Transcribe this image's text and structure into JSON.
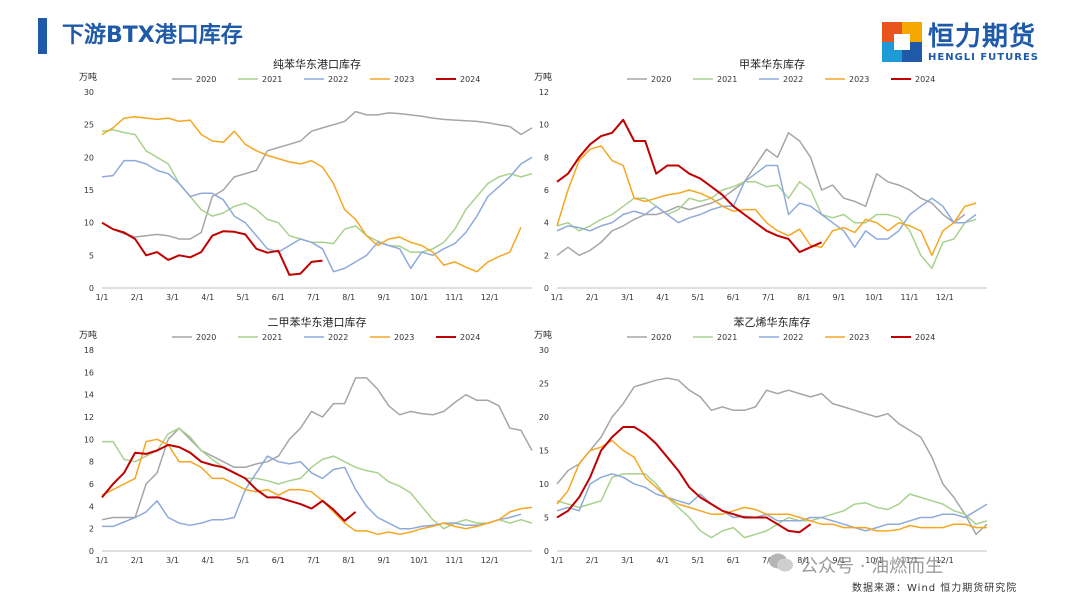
{
  "header": {
    "title": "下游BTX港口库存"
  },
  "logo": {
    "name": "恒力期货",
    "sub": "HENGLI FUTURES",
    "colors": [
      "#e8541e",
      "#f6a800",
      "#1e9ad6",
      "#1e5aa8"
    ]
  },
  "footer": {
    "watermark": "公众号 · 油燃而生",
    "source": "数据来源：Wind 恒力期货研究院"
  },
  "series_colors": {
    "2020": "#a6a6a6",
    "2021": "#a9d18e",
    "2022": "#8eaadb",
    "2023": "#f5a623",
    "2024": "#c00000"
  },
  "chart_data": [
    {
      "type": "line",
      "title": "纯苯华东港口库存",
      "unit": "万吨",
      "ylim": [
        0,
        30
      ],
      "yticks": [
        0,
        5,
        10,
        15,
        20,
        25,
        30
      ],
      "xticks": [
        "1/1",
        "2/1",
        "3/1",
        "4/1",
        "5/1",
        "6/1",
        "7/1",
        "8/1",
        "9/1",
        "10/1",
        "11/1",
        "12/1"
      ],
      "legend_position": "top",
      "series": [
        {
          "name": "2020",
          "values": [
            10,
            9,
            8.3,
            7.8,
            8,
            8.2,
            8,
            7.5,
            7.5,
            8.5,
            14,
            15,
            17,
            17.5,
            18,
            21,
            21.5,
            22,
            22.5,
            24,
            24.5,
            25,
            25.5,
            27,
            26.5,
            26.5,
            26.8,
            26.7,
            26.5,
            26.3,
            26,
            25.8,
            25.7,
            25.6,
            25.5,
            25.3,
            25,
            24.7,
            23.5,
            24.5
          ]
        },
        {
          "name": "2021",
          "values": [
            24,
            24.2,
            23.8,
            23.5,
            21,
            20,
            19,
            16,
            14,
            12,
            11,
            11.5,
            12.5,
            13,
            12,
            10.5,
            10,
            8,
            7.5,
            7,
            7,
            6.8,
            9,
            9.5,
            8,
            7.2,
            6.5,
            6.4,
            5.5,
            5.5,
            6,
            7,
            9,
            12,
            14,
            16,
            17,
            17.5,
            17,
            17.5
          ]
        },
        {
          "name": "2022",
          "values": [
            17,
            17.2,
            19.5,
            19.5,
            19,
            18,
            17.5,
            16,
            14,
            14.5,
            14.5,
            13.5,
            11,
            10,
            8,
            6,
            5.5,
            6.5,
            7.5,
            7,
            6,
            2.5,
            3,
            4,
            5,
            7,
            6.5,
            6,
            3,
            5.5,
            5,
            6,
            6.8,
            8.5,
            11,
            14,
            15.5,
            17,
            19,
            20
          ]
        },
        {
          "name": "2023",
          "values": [
            23.5,
            24.5,
            26,
            26.2,
            26,
            25.8,
            26,
            25.5,
            25.7,
            23.5,
            22.5,
            22.3,
            24,
            22,
            21,
            20.3,
            19.8,
            19.3,
            19,
            19.5,
            18.5,
            16,
            12,
            10.5,
            8,
            6.5,
            7.5,
            7.8,
            7,
            6.5,
            5.5,
            3.5,
            4,
            3.2,
            2.5,
            4,
            4.8,
            5.5,
            9.3,
            null
          ]
        },
        {
          "name": "2024",
          "values": [
            10,
            9,
            8.5,
            7.5,
            5,
            5.5,
            4.3,
            5,
            4.7,
            5.5,
            8,
            8.7,
            8.6,
            8.2,
            6,
            5.4,
            5.7,
            2,
            2.2,
            4,
            4.2
          ]
        }
      ]
    },
    {
      "type": "line",
      "title": "甲苯华东库存",
      "unit": "万吨",
      "ylim": [
        0,
        12
      ],
      "yticks": [
        0,
        2,
        4,
        6,
        8,
        10,
        12
      ],
      "xticks": [
        "1/1",
        "2/1",
        "3/1",
        "4/1",
        "5/1",
        "6/1",
        "7/1",
        "8/1",
        "9/1",
        "10/1",
        "11/1",
        "12/1"
      ],
      "legend_position": "top",
      "series": [
        {
          "name": "2020",
          "values": [
            2,
            2.5,
            2,
            2.3,
            2.8,
            3.5,
            3.8,
            4.2,
            4.5,
            4.5,
            4.7,
            5,
            4.8,
            5,
            5.2,
            5.5,
            6,
            6.5,
            7.5,
            8.5,
            8,
            9.5,
            9,
            8,
            6,
            6.3,
            5.5,
            5.3,
            5,
            7,
            6.5,
            6.3,
            6,
            5.5,
            5.2,
            4.5,
            4,
            4.5
          ]
        },
        {
          "name": "2021",
          "values": [
            3.8,
            4,
            3.5,
            3.8,
            4.2,
            4.5,
            5,
            5.5,
            5.5,
            5,
            4.5,
            4.8,
            5.5,
            5.3,
            5.5,
            6,
            6.2,
            6.5,
            6.5,
            6.2,
            6.3,
            5.5,
            6.5,
            6,
            4.5,
            4.3,
            4.5,
            4,
            4,
            4.5,
            4.5,
            4.3,
            3.5,
            2,
            1.2,
            2.8,
            3,
            4,
            4.2
          ]
        },
        {
          "name": "2022",
          "values": [
            3.5,
            3.8,
            3.7,
            3.5,
            3.8,
            4,
            4.5,
            4.7,
            4.5,
            5,
            4.5,
            4,
            4.3,
            4.5,
            4.8,
            5,
            5,
            6.5,
            7,
            7.5,
            7.5,
            4.5,
            5.2,
            5,
            4.5,
            4,
            3.5,
            2.5,
            3.5,
            3,
            3,
            3.5,
            4.5,
            5,
            5.5,
            5,
            4,
            4,
            4.5
          ]
        },
        {
          "name": "2023",
          "values": [
            3.8,
            6,
            7.8,
            8.5,
            8.7,
            7.8,
            7.5,
            5.5,
            5.3,
            5.5,
            5.7,
            5.8,
            6,
            5.8,
            5.5,
            5,
            4.7,
            4.8,
            4.8,
            4,
            3.5,
            3.2,
            3.6,
            2.6,
            2.5,
            3.5,
            3.7,
            3.4,
            4.2,
            4,
            3.5,
            4,
            3.8,
            3.5,
            2,
            3.5,
            4,
            5,
            5.2
          ]
        },
        {
          "name": "2024",
          "values": [
            6.5,
            7,
            8,
            8.8,
            9.3,
            9.5,
            10.3,
            9,
            9,
            7,
            7.5,
            7.5,
            7,
            6.7,
            6.2,
            5.7,
            5,
            4.5,
            4,
            3.5,
            3.2,
            3,
            2.2,
            2.5,
            2.8
          ]
        }
      ]
    },
    {
      "type": "line",
      "title": "二甲苯华东港口库存",
      "unit": "万吨",
      "ylim": [
        0,
        18
      ],
      "yticks": [
        0,
        2,
        4,
        6,
        8,
        10,
        12,
        14,
        16,
        18
      ],
      "xticks": [
        "1/1",
        "2/1",
        "3/1",
        "4/1",
        "5/1",
        "6/1",
        "7/1",
        "8/1",
        "9/1",
        "10/1",
        "11/1",
        "12/1"
      ],
      "legend_position": "top",
      "series": [
        {
          "name": "2020",
          "values": [
            2.8,
            3,
            3,
            3,
            6,
            7,
            10,
            11,
            10,
            9,
            8.5,
            8,
            7.5,
            7.5,
            7.8,
            8,
            8.5,
            10,
            11,
            12.5,
            12,
            13.2,
            13.2,
            15.5,
            15.5,
            14.5,
            13,
            12.2,
            12.5,
            12.3,
            12.2,
            12.5,
            13.3,
            14,
            13.5,
            13.5,
            13,
            11,
            10.8,
            9
          ]
        },
        {
          "name": "2021",
          "values": [
            9.8,
            9.8,
            8.2,
            8,
            8.5,
            9,
            10.5,
            11,
            10.2,
            9,
            8.2,
            7.5,
            7,
            6.5,
            6.5,
            6.3,
            6,
            6.3,
            6.5,
            7.5,
            8.2,
            8.5,
            8,
            7.5,
            7.2,
            7,
            6.2,
            5.8,
            5.2,
            4,
            2.8,
            2,
            2.5,
            2.8,
            2.5,
            2.5,
            2.8,
            2.5,
            2.8,
            2.5
          ]
        },
        {
          "name": "2022",
          "values": [
            2.2,
            2.2,
            2.6,
            3,
            3.5,
            4.5,
            3,
            2.5,
            2.3,
            2.5,
            2.8,
            2.8,
            3,
            5.5,
            7,
            8.5,
            8,
            7.8,
            8,
            7,
            6.5,
            7.3,
            7.5,
            5.5,
            4,
            3,
            2.5,
            2,
            2,
            2.2,
            2.3,
            2.5,
            2.5,
            2.3,
            2.3,
            2.5,
            2.8,
            3,
            3.3
          ]
        },
        {
          "name": "2023",
          "values": [
            5,
            5.5,
            6,
            6.5,
            9.8,
            10,
            9.5,
            8,
            8,
            7.5,
            6.5,
            6.5,
            6,
            5.5,
            5.3,
            5.5,
            5,
            5.5,
            5.5,
            5.3,
            4.5,
            3.5,
            2.5,
            1.8,
            1.8,
            1.5,
            1.7,
            1.5,
            1.7,
            2,
            2.2,
            2.5,
            2.2,
            2,
            2.2,
            2.5,
            2.8,
            3.5,
            3.8,
            3.9
          ]
        },
        {
          "name": "2024",
          "values": [
            4.8,
            6,
            7,
            8.8,
            8.7,
            9,
            9.5,
            9.3,
            8.8,
            8,
            7.7,
            7.5,
            7,
            6.5,
            5.5,
            4.8,
            4.8,
            4.5,
            4.2,
            3.8,
            4.5,
            3.7,
            2.7,
            3.5
          ]
        }
      ]
    },
    {
      "type": "line",
      "title": "苯乙烯华东库存",
      "unit": "万吨",
      "ylim": [
        0,
        30
      ],
      "yticks": [
        0,
        5,
        10,
        15,
        20,
        25,
        30
      ],
      "xticks": [
        "1/1",
        "2/1",
        "3/1",
        "4/1",
        "5/1",
        "6/1",
        "7/1",
        "8/1",
        "9/1",
        "10/1",
        "11/1",
        "12/1"
      ],
      "legend_position": "top",
      "series": [
        {
          "name": "2020",
          "values": [
            10,
            12,
            13,
            15,
            17,
            20,
            22,
            24.5,
            25,
            25.5,
            25.8,
            25.5,
            24,
            23,
            21,
            21.5,
            21,
            21,
            21.5,
            24,
            23.5,
            24,
            23.5,
            23,
            23.5,
            22,
            21.5,
            21,
            20.5,
            20,
            20.5,
            19,
            18,
            17,
            14,
            10,
            8,
            5.5,
            2.5,
            4
          ]
        },
        {
          "name": "2021",
          "values": [
            7.5,
            7,
            6.5,
            7,
            7.5,
            11,
            11.5,
            11.5,
            11.5,
            10,
            8,
            6.5,
            5,
            3,
            2,
            3,
            3.5,
            2,
            2.5,
            3,
            4,
            5,
            4.5,
            4.5,
            5,
            5.5,
            6,
            7,
            7.2,
            6.5,
            6.2,
            7,
            8.5,
            8,
            7.5,
            7,
            6,
            5.5,
            4,
            4.5
          ]
        },
        {
          "name": "2022",
          "values": [
            6,
            6.5,
            6,
            10,
            11,
            11.5,
            11,
            10,
            9.5,
            8.5,
            8,
            7.5,
            7,
            8.5,
            7,
            6,
            5,
            5.2,
            5,
            5.5,
            4.5,
            4.5,
            4.5,
            5,
            5,
            4.5,
            4,
            3.5,
            3,
            3.5,
            4,
            4,
            4.5,
            5,
            5,
            5.5,
            5.5,
            5,
            6,
            7
          ]
        },
        {
          "name": "2023",
          "values": [
            7,
            9,
            13,
            15,
            15.5,
            16.5,
            15,
            14,
            11,
            9.5,
            8,
            7,
            6.5,
            6,
            5.5,
            5.5,
            6,
            6.5,
            6.2,
            5.5,
            5.5,
            5.5,
            5,
            4.5,
            4,
            4,
            3.5,
            3.5,
            3.5,
            3,
            3,
            3.2,
            3.8,
            3.5,
            3.5,
            3.5,
            4,
            4,
            3.5,
            3.5
          ]
        },
        {
          "name": "2024",
          "values": [
            5,
            6,
            8,
            11,
            15,
            17,
            18.5,
            18.5,
            17.5,
            16,
            14,
            12,
            9.5,
            8,
            7,
            6,
            5.5,
            5,
            5,
            5,
            4,
            3,
            2.8,
            4
          ]
        }
      ]
    }
  ]
}
